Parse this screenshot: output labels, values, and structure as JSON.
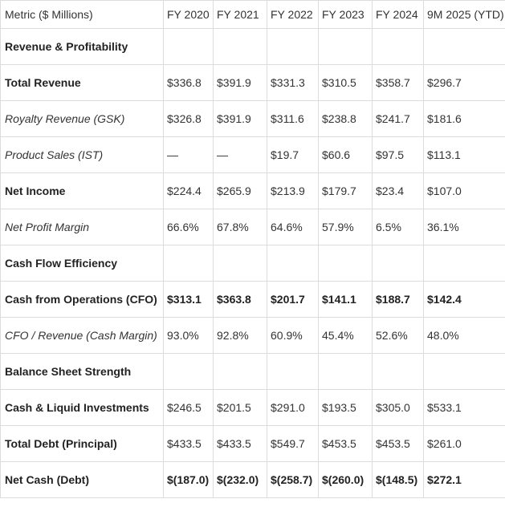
{
  "table": {
    "header": [
      "Metric ($ Millions)",
      "FY 2020",
      "FY 2021",
      "FY 2022",
      "FY 2023",
      "FY 2024",
      "9M 2025 (YTD)"
    ],
    "rows": [
      [
        "Revenue & Profitability"
      ],
      [
        "Total Revenue",
        "$336.8",
        "$391.9",
        "$331.3",
        "$310.5",
        "$358.7",
        "$296.7"
      ],
      [
        "Royalty Revenue (GSK)",
        "$326.8",
        "$391.9",
        "$311.6",
        "$238.8",
        "$241.7",
        "$181.6"
      ],
      [
        "Product Sales (IST)",
        "—",
        "—",
        "$19.7",
        "$60.6",
        "$97.5",
        "$113.1"
      ],
      [
        "Net Income",
        "$224.4",
        "$265.9",
        "$213.9",
        "$179.7",
        "$23.4",
        "$107.0"
      ],
      [
        "Net Profit Margin",
        "66.6%",
        "67.8%",
        "64.6%",
        "57.9%",
        "6.5%",
        "36.1%"
      ],
      [
        "Cash Flow Efficiency"
      ],
      [
        "Cash from Operations (CFO)",
        "$313.1",
        "$363.8",
        "$201.7",
        "$141.1",
        "$188.7",
        "$142.4"
      ],
      [
        "CFO / Revenue (Cash Margin)",
        "93.0%",
        "92.8%",
        "60.9%",
        "45.4%",
        "52.6%",
        "48.0%"
      ],
      [
        "Balance Sheet Strength"
      ],
      [
        "Cash & Liquid Investments",
        "$246.5",
        "$201.5",
        "$291.0",
        "$193.5",
        "$305.0",
        "$533.1"
      ],
      [
        "Total Debt (Principal)",
        "$433.5",
        "$433.5",
        "$549.7",
        "$453.5",
        "$453.5",
        "$261.0"
      ],
      [
        "Net Cash (Debt)",
        "$(187.0)",
        "$(232.0)",
        "$(258.7)",
        "$(260.0)",
        "$(148.5)",
        "$272.1"
      ]
    ]
  }
}
